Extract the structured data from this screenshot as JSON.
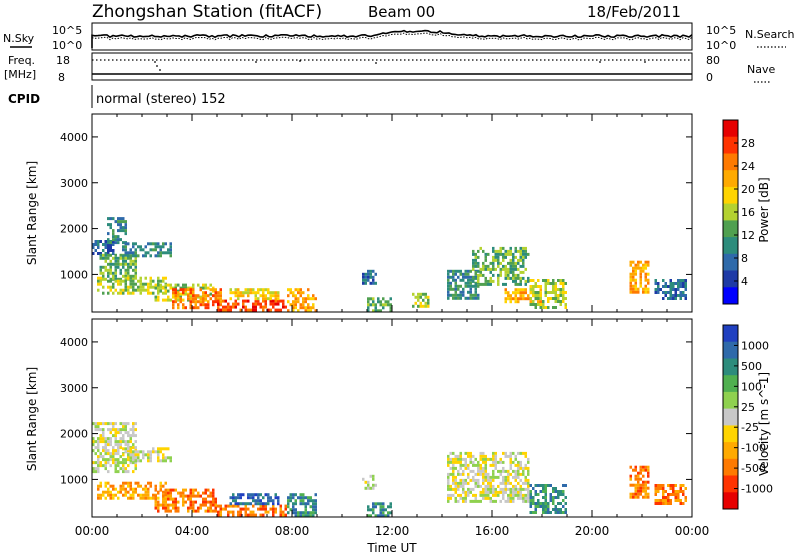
{
  "header": {
    "title": "Zhongshan Station (fitACF)",
    "beam": "Beam 00",
    "date": "18/Feb/2011"
  },
  "top_panels": {
    "nsky_label": "N.Sky",
    "nsky_ticks": [
      "10^5",
      "10^0"
    ],
    "nsearch_label": "N.Search",
    "nsearch_ticks": [
      "10^5",
      "10^0"
    ],
    "freq_label": "Freq.",
    "freq_unit": "[MHz]",
    "freq_ticks": [
      "18",
      "8"
    ],
    "nave_label": "Nave",
    "nave_ticks": [
      "80",
      "0"
    ],
    "cpid_label": "CPID",
    "cpid_value": "normal (stereo) 152"
  },
  "chart_data": [
    {
      "type": "heatmap",
      "name": "power",
      "ylabel": "Slant Range [km]",
      "yticks": [
        1000,
        2000,
        3000,
        4000
      ],
      "ylim": [
        180,
        4500
      ],
      "xlim": [
        0,
        24
      ],
      "xticks": [
        "00:00",
        "04:00",
        "08:00",
        "12:00",
        "16:00",
        "20:00",
        "00:00"
      ],
      "colorbar_label": "Power [dB]",
      "colorbar_ticks": [
        "28",
        "24",
        "20",
        "16",
        "12",
        "8",
        "4"
      ],
      "colorbar_colors": [
        "#e60000",
        "#ff3300",
        "#ff7a00",
        "#ffaa00",
        "#ffd400",
        "#b4d230",
        "#50a050",
        "#2d8c7c",
        "#2f6aaa",
        "#1e3aa6",
        "#0000ff"
      ],
      "echo_regions": [
        {
          "t": [
            0.0,
            0.9
          ],
          "r": [
            1450,
            1750
          ],
          "level": 8
        },
        {
          "t": [
            0.6,
            1.4
          ],
          "r": [
            1700,
            2250
          ],
          "level": 7
        },
        {
          "t": [
            0.3,
            1.8
          ],
          "r": [
            900,
            1450
          ],
          "level": 6
        },
        {
          "t": [
            1.2,
            3.2
          ],
          "r": [
            1400,
            1700
          ],
          "level": 7
        },
        {
          "t": [
            0.2,
            3.0
          ],
          "r": [
            600,
            950
          ],
          "level": 5
        },
        {
          "t": [
            2.5,
            5.0
          ],
          "r": [
            450,
            800
          ],
          "level": 5
        },
        {
          "t": [
            3.2,
            5.2
          ],
          "r": [
            300,
            700
          ],
          "level": 2
        },
        {
          "t": [
            5.0,
            7.8
          ],
          "r": [
            200,
            450
          ],
          "level": 1
        },
        {
          "t": [
            5.5,
            7.5
          ],
          "r": [
            450,
            700
          ],
          "level": 4
        },
        {
          "t": [
            7.8,
            9.0
          ],
          "r": [
            200,
            700
          ],
          "level": 3
        },
        {
          "t": [
            10.8,
            11.4
          ],
          "r": [
            800,
            1100
          ],
          "level": 8
        },
        {
          "t": [
            11.0,
            12.0
          ],
          "r": [
            200,
            500
          ],
          "level": 6
        },
        {
          "t": [
            12.8,
            13.5
          ],
          "r": [
            300,
            600
          ],
          "level": 5
        },
        {
          "t": [
            14.2,
            15.5
          ],
          "r": [
            500,
            1100
          ],
          "level": 7
        },
        {
          "t": [
            15.2,
            17.5
          ],
          "r": [
            800,
            1600
          ],
          "level": 6
        },
        {
          "t": [
            16.5,
            18.0
          ],
          "r": [
            400,
            700
          ],
          "level": 3
        },
        {
          "t": [
            17.5,
            19.0
          ],
          "r": [
            300,
            900
          ],
          "level": 5
        },
        {
          "t": [
            21.5,
            22.3
          ],
          "r": [
            600,
            1300
          ],
          "level": 3
        },
        {
          "t": [
            22.5,
            23.8
          ],
          "r": [
            500,
            900
          ],
          "level": 8
        }
      ]
    },
    {
      "type": "heatmap",
      "name": "velocity",
      "ylabel": "Slant Range [km]",
      "yticks": [
        1000,
        2000,
        3000,
        4000
      ],
      "ylim": [
        180,
        4500
      ],
      "xlim": [
        0,
        24
      ],
      "xticks": [
        "00:00",
        "04:00",
        "08:00",
        "12:00",
        "16:00",
        "20:00",
        "00:00"
      ],
      "xlabel": "Time UT",
      "colorbar_label": "Velocity [m s^-1]",
      "colorbar_ticks": [
        "1000",
        "500",
        "100",
        "25",
        "-25",
        "-100",
        "-500",
        "-1000"
      ],
      "colorbar_colors": [
        "#2040c0",
        "#2f6aaa",
        "#2d8c7c",
        "#50b050",
        "#8fd14f",
        "#c8c8c8",
        "#ffd400",
        "#ffaa00",
        "#ff7a00",
        "#ff3300",
        "#e60000"
      ],
      "echo_regions": [
        {
          "t": [
            0.0,
            1.8
          ],
          "r": [
            1200,
            2250
          ],
          "level": 5
        },
        {
          "t": [
            1.2,
            3.2
          ],
          "r": [
            1400,
            1700
          ],
          "level": 5
        },
        {
          "t": [
            0.2,
            3.0
          ],
          "r": [
            600,
            950
          ],
          "level": 7
        },
        {
          "t": [
            2.5,
            5.0
          ],
          "r": [
            300,
            800
          ],
          "level": 8
        },
        {
          "t": [
            5.0,
            7.8
          ],
          "r": [
            200,
            450
          ],
          "level": 8
        },
        {
          "t": [
            5.5,
            7.5
          ],
          "r": [
            450,
            700
          ],
          "level": 1
        },
        {
          "t": [
            7.8,
            9.0
          ],
          "r": [
            200,
            700
          ],
          "level": 2
        },
        {
          "t": [
            10.8,
            11.4
          ],
          "r": [
            800,
            1100
          ],
          "level": 5
        },
        {
          "t": [
            11.0,
            12.0
          ],
          "r": [
            200,
            500
          ],
          "level": 2
        },
        {
          "t": [
            14.2,
            17.5
          ],
          "r": [
            500,
            1600
          ],
          "level": 5
        },
        {
          "t": [
            17.5,
            19.0
          ],
          "r": [
            300,
            900
          ],
          "level": 2
        },
        {
          "t": [
            21.5,
            22.3
          ],
          "r": [
            600,
            1300
          ],
          "level": 8
        },
        {
          "t": [
            22.5,
            23.8
          ],
          "r": [
            500,
            900
          ],
          "level": 8
        }
      ]
    }
  ]
}
